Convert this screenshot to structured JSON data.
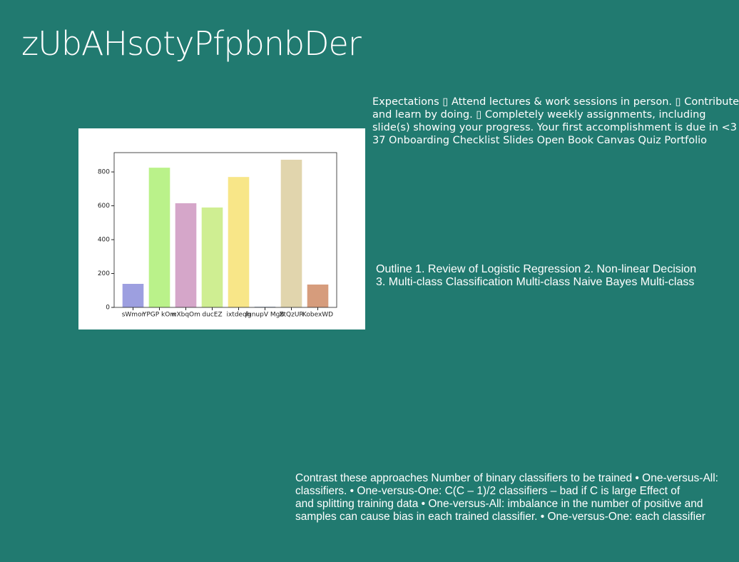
{
  "title": "zUbAHsotyPfpbnbDer",
  "expectations": {
    "lines": [
      "Expectations ▯ Attend lectures & work sessions in person. ▯ Contribute",
      "and learn by doing. ▯ Completely weekly assignments, including",
      "slide(s) showing your progress. Your first accomplishment is due in <3",
      "37 Onboarding Checklist Slides Open Book Canvas Quiz Portfolio"
    ]
  },
  "outline": {
    "lines": [
      "Outline 1. Review of Logistic Regression 2. Non-linear Decision",
      "3. Multi-class Classification Multi-class Naive Bayes Multi-class"
    ]
  },
  "contrast": {
    "lines": [
      "Contrast these approaches Number of binary classifiers to be trained • One-versus-All:",
      "classifiers. • One-versus-One: C(C – 1)/2 classifiers – bad if C is large Effect of",
      "and splitting training data • One-versus-All: imbalance in the number of positive and",
      "samples can cause bias in each trained classifier. • One-versus-One: each classifier"
    ]
  },
  "chart_data": {
    "type": "bar",
    "categories": [
      "sWmor",
      "YPGP kOm",
      "wXbqOm",
      "ducEZ",
      "ixtdeqh",
      "lgnupV MgB",
      "XtQzUR",
      "KobexWD"
    ],
    "values": [
      139,
      825,
      615,
      590,
      770,
      4,
      872,
      135
    ],
    "colors": [
      "#9d9fe0",
      "#baf28a",
      "#d5a6c9",
      "#cfee92",
      "#f8e688",
      "#a0b0c0",
      "#e1d5ad",
      "#d69c7c"
    ],
    "ylim": [
      0,
      914
    ],
    "yticks": [
      0,
      200,
      400,
      600,
      800
    ]
  }
}
